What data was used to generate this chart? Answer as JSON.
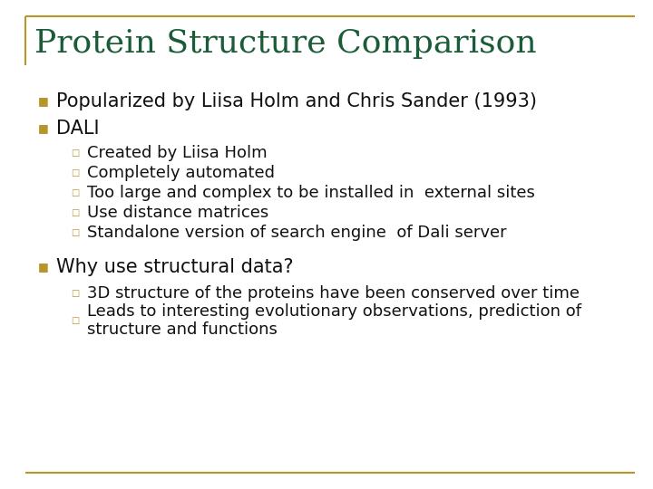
{
  "title": "Protein Structure Comparison",
  "title_color": "#1a5c38",
  "title_fontsize": 26,
  "border_color": "#b8952a",
  "background_color": "#ffffff",
  "bullet_color": "#b8952a",
  "text_color": "#111111",
  "level1_items": [
    "Popularized by Liisa Holm and Chris Sander (1993)",
    "DALI"
  ],
  "level2_items": [
    "Created by Liisa Holm",
    "Completely automated",
    "Too large and complex to be installed in  external sites",
    "Use distance matrices",
    "Standalone version of search engine  of Dali server"
  ],
  "level1_item3": "Why use structural data?",
  "level2_item3": [
    "3D structure of the proteins have been conserved over time",
    "Leads to interesting evolutionary observations, prediction of\nstructure and functions"
  ],
  "level1_fontsize": 15,
  "level2_fontsize": 13,
  "subbullet_color": "#b8952a"
}
